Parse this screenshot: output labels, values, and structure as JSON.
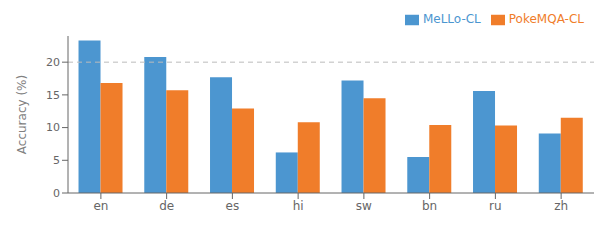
{
  "chart_data": {
    "type": "bar",
    "categories": [
      "en",
      "de",
      "es",
      "hi",
      "sw",
      "bn",
      "ru",
      "zh"
    ],
    "series": [
      {
        "name": "MeLLo-CL",
        "color": "#4C96D0",
        "values": [
          23.3,
          20.8,
          17.7,
          6.2,
          17.2,
          5.5,
          15.6,
          9.1
        ]
      },
      {
        "name": "PokeMQA-CL",
        "color": "#F07D2A",
        "values": [
          16.8,
          15.7,
          12.9,
          10.8,
          14.5,
          10.4,
          10.3,
          11.5
        ]
      }
    ],
    "ylabel": "Accuracy (%)",
    "ylim": [
      0,
      24
    ],
    "yticks": [
      0,
      5,
      10,
      15,
      20
    ],
    "reference_lines": [
      {
        "y": 20,
        "color": "#BBBBBB",
        "line_style": "dashed"
      }
    ],
    "grid": false,
    "legend": "upper right"
  }
}
